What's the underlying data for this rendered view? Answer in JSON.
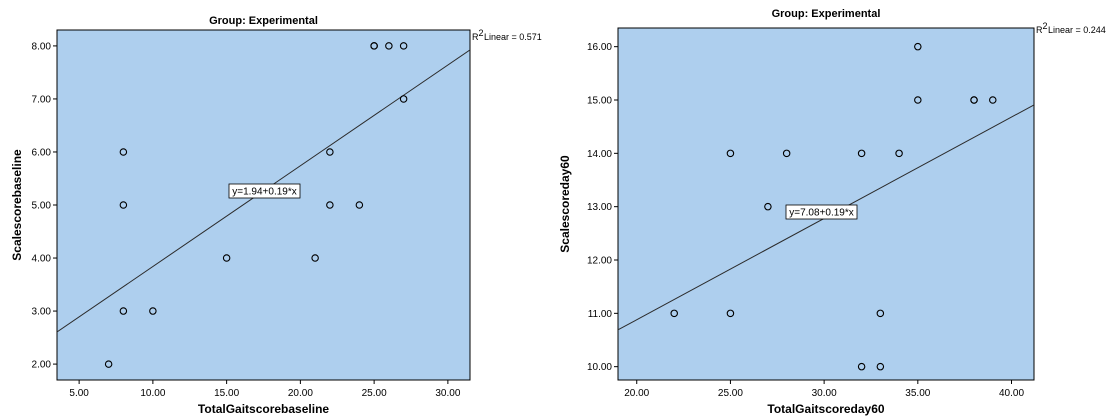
{
  "chart_data": [
    {
      "type": "scatter",
      "title": "Group: Experimental",
      "xlabel": "TotalGaitscorebaseline",
      "ylabel": "Scalescorebaseline",
      "xlim": [
        3.5,
        31.5
      ],
      "ylim": [
        1.7,
        8.3
      ],
      "xticks": [
        5,
        10,
        15,
        20,
        25,
        30
      ],
      "xtick_labels": [
        "5.00",
        "10.00",
        "15.00",
        "20.00",
        "25.00",
        "30.00"
      ],
      "yticks": [
        2,
        3,
        4,
        5,
        6,
        7,
        8
      ],
      "ytick_labels": [
        "2.00",
        "3.00",
        "4.00",
        "5.00",
        "6.00",
        "7.00",
        "8.00"
      ],
      "points": [
        {
          "x": 7,
          "y": 2
        },
        {
          "x": 8,
          "y": 3
        },
        {
          "x": 8,
          "y": 5
        },
        {
          "x": 8,
          "y": 6
        },
        {
          "x": 10,
          "y": 3
        },
        {
          "x": 15,
          "y": 4
        },
        {
          "x": 21,
          "y": 4
        },
        {
          "x": 22,
          "y": 5
        },
        {
          "x": 22,
          "y": 6
        },
        {
          "x": 24,
          "y": 5
        },
        {
          "x": 25,
          "y": 8
        },
        {
          "x": 25,
          "y": 8
        },
        {
          "x": 26,
          "y": 8
        },
        {
          "x": 27,
          "y": 8
        },
        {
          "x": 27,
          "y": 7
        }
      ],
      "fit": {
        "intercept": 1.94,
        "slope": 0.19
      },
      "equation_label": "y=1.94+0.19*x",
      "r2_label": "Linear = 0.571",
      "colors": {
        "plot_bg": "#aecfee",
        "line": "#2b2b2b",
        "marker": "#000000"
      }
    },
    {
      "type": "scatter",
      "title": "Group: Experimental",
      "xlabel": "TotalGaitscoreday60",
      "ylabel": "Scalescoreday60",
      "xlim": [
        19,
        41.2
      ],
      "ylim": [
        9.75,
        16.35
      ],
      "xticks": [
        20,
        25,
        30,
        35,
        40
      ],
      "xtick_labels": [
        "20.00",
        "25.00",
        "30.00",
        "35.00",
        "40.00"
      ],
      "yticks": [
        10,
        11,
        12,
        13,
        14,
        15,
        16
      ],
      "ytick_labels": [
        "10.00",
        "11.00",
        "12.00",
        "13.00",
        "14.00",
        "15.00",
        "16.00"
      ],
      "points": [
        {
          "x": 22,
          "y": 11
        },
        {
          "x": 25,
          "y": 11
        },
        {
          "x": 25,
          "y": 14
        },
        {
          "x": 27,
          "y": 13
        },
        {
          "x": 28,
          "y": 14
        },
        {
          "x": 32,
          "y": 10
        },
        {
          "x": 32,
          "y": 14
        },
        {
          "x": 33,
          "y": 10
        },
        {
          "x": 33,
          "y": 11
        },
        {
          "x": 34,
          "y": 14
        },
        {
          "x": 35,
          "y": 15
        },
        {
          "x": 35,
          "y": 16
        },
        {
          "x": 38,
          "y": 15
        },
        {
          "x": 38,
          "y": 15
        },
        {
          "x": 39,
          "y": 15
        }
      ],
      "fit": {
        "intercept": 7.08,
        "slope": 0.19
      },
      "equation_label": "y=7.08+0.19*x",
      "r2_label": "Linear = 0.244",
      "colors": {
        "plot_bg": "#aecfee",
        "line": "#2b2b2b",
        "marker": "#000000"
      }
    }
  ]
}
